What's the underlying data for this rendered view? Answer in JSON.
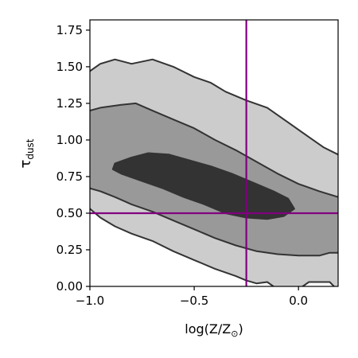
{
  "chart_data": {
    "type": "contour",
    "xlabel": "log(Z/Z",
    "xlabel_sub": "⊙",
    "xlabel_tail": ")",
    "ylabel": "τ",
    "ylabel_sub": "dust",
    "xlim": [
      -1.0,
      0.19
    ],
    "ylim": [
      0.0,
      1.82
    ],
    "x_ticks": [
      {
        "value": -1.0,
        "label": "−1.0"
      },
      {
        "value": -0.5,
        "label": "−0.5"
      },
      {
        "value": 0.0,
        "label": "0.0"
      }
    ],
    "y_ticks": [
      {
        "value": 0.0,
        "label": "0.00"
      },
      {
        "value": 0.25,
        "label": "0.25"
      },
      {
        "value": 0.5,
        "label": "0.50"
      },
      {
        "value": 0.75,
        "label": "0.75"
      },
      {
        "value": 1.0,
        "label": "1.00"
      },
      {
        "value": 1.25,
        "label": "1.25"
      },
      {
        "value": 1.5,
        "label": "1.50"
      },
      {
        "value": 1.75,
        "label": "1.75"
      }
    ],
    "reference_lines": {
      "color": "#800080",
      "vertical_x": -0.25,
      "horizontal_y": 0.5
    },
    "levels": [
      {
        "color": "#cccccc",
        "upper": [
          [
            -1.0,
            1.47
          ],
          [
            -0.95,
            1.52
          ],
          [
            -0.88,
            1.55
          ],
          [
            -0.8,
            1.52
          ],
          [
            -0.7,
            1.55
          ],
          [
            -0.6,
            1.5
          ],
          [
            -0.5,
            1.43
          ],
          [
            -0.42,
            1.39
          ],
          [
            -0.35,
            1.33
          ],
          [
            -0.25,
            1.27
          ],
          [
            -0.15,
            1.22
          ],
          [
            -0.05,
            1.12
          ],
          [
            0.05,
            1.02
          ],
          [
            0.12,
            0.95
          ],
          [
            0.19,
            0.9
          ]
        ],
        "lower": [
          [
            -1.0,
            0.53
          ],
          [
            -0.95,
            0.47
          ],
          [
            -0.88,
            0.41
          ],
          [
            -0.8,
            0.36
          ],
          [
            -0.7,
            0.31
          ],
          [
            -0.6,
            0.24
          ],
          [
            -0.5,
            0.18
          ],
          [
            -0.4,
            0.12
          ],
          [
            -0.3,
            0.07
          ],
          [
            -0.25,
            0.04
          ],
          [
            -0.2,
            0.02
          ],
          [
            -0.15,
            0.03
          ],
          [
            -0.12,
            0.0
          ]
        ],
        "lower_right": [
          [
            0.02,
            0.0
          ],
          [
            0.05,
            0.03
          ],
          [
            0.1,
            0.03
          ],
          [
            0.15,
            0.03
          ],
          [
            0.17,
            0.0
          ]
        ]
      },
      {
        "color": "#999999",
        "upper": [
          [
            -1.0,
            1.2
          ],
          [
            -0.95,
            1.22
          ],
          [
            -0.85,
            1.24
          ],
          [
            -0.78,
            1.25
          ],
          [
            -0.7,
            1.2
          ],
          [
            -0.6,
            1.14
          ],
          [
            -0.5,
            1.08
          ],
          [
            -0.4,
            1.0
          ],
          [
            -0.3,
            0.93
          ],
          [
            -0.2,
            0.85
          ],
          [
            -0.1,
            0.77
          ],
          [
            0.0,
            0.7
          ],
          [
            0.1,
            0.65
          ],
          [
            0.19,
            0.61
          ]
        ],
        "lower": [
          [
            -1.0,
            0.67
          ],
          [
            -0.95,
            0.65
          ],
          [
            -0.88,
            0.61
          ],
          [
            -0.8,
            0.56
          ],
          [
            -0.7,
            0.51
          ],
          [
            -0.6,
            0.45
          ],
          [
            -0.5,
            0.39
          ],
          [
            -0.4,
            0.33
          ],
          [
            -0.3,
            0.28
          ],
          [
            -0.2,
            0.24
          ],
          [
            -0.1,
            0.22
          ],
          [
            0.0,
            0.21
          ],
          [
            0.1,
            0.21
          ],
          [
            0.15,
            0.23
          ],
          [
            0.19,
            0.23
          ]
        ]
      },
      {
        "color": "#333333",
        "blob": [
          [
            -0.88,
            0.84
          ],
          [
            -0.8,
            0.88
          ],
          [
            -0.72,
            0.91
          ],
          [
            -0.62,
            0.9
          ],
          [
            -0.52,
            0.86
          ],
          [
            -0.42,
            0.82
          ],
          [
            -0.32,
            0.77
          ],
          [
            -0.22,
            0.71
          ],
          [
            -0.12,
            0.65
          ],
          [
            -0.05,
            0.6
          ],
          [
            -0.02,
            0.53
          ],
          [
            -0.07,
            0.48
          ],
          [
            -0.15,
            0.46
          ],
          [
            -0.25,
            0.47
          ],
          [
            -0.35,
            0.5
          ],
          [
            -0.45,
            0.56
          ],
          [
            -0.55,
            0.61
          ],
          [
            -0.65,
            0.67
          ],
          [
            -0.75,
            0.72
          ],
          [
            -0.85,
            0.77
          ],
          [
            -0.89,
            0.8
          ]
        ]
      }
    ]
  }
}
